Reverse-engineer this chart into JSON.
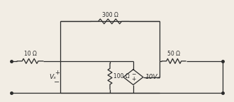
{
  "bg_color": "#f2ede4",
  "line_color": "#2a2a2a",
  "text_color": "#2a2a2a",
  "fig_width": 3.3,
  "fig_height": 1.45,
  "dpi": 100,
  "R1_label": "10 Ω",
  "R2_label": "300 Ω",
  "R3_label": "50 Ω",
  "R4_label": "100 Ω",
  "dep_label": "10Vₓ",
  "vx_label": "Vₓ"
}
